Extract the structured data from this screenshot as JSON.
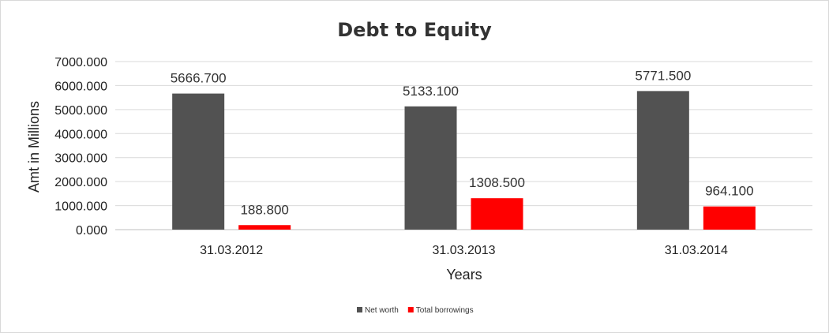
{
  "chart_data": {
    "type": "bar",
    "title": "Debt to Equity",
    "xlabel": "Years",
    "ylabel": "Amt in Millions",
    "categories": [
      "31.03.2012",
      "31.03.2013",
      "31.03.2014"
    ],
    "series": [
      {
        "name": "Net worth",
        "values": [
          5666.7,
          5133.1,
          5771.5
        ],
        "labels": [
          "5666.700",
          "5133.100",
          "5771.500"
        ],
        "color": "#525252"
      },
      {
        "name": "Total borrowings",
        "values": [
          188.8,
          1308.5,
          964.1
        ],
        "labels": [
          "188.800",
          "1308.500",
          "964.100"
        ],
        "color": "#ff0000"
      }
    ],
    "ylim": [
      0,
      7000
    ],
    "yticks": [
      0,
      1000,
      2000,
      3000,
      4000,
      5000,
      6000,
      7000
    ],
    "ytick_labels": [
      "0.000",
      "1000.000",
      "2000.000",
      "3000.000",
      "4000.000",
      "5000.000",
      "6000.000",
      "7000.000"
    ],
    "grid": true,
    "legend_position": "bottom"
  }
}
